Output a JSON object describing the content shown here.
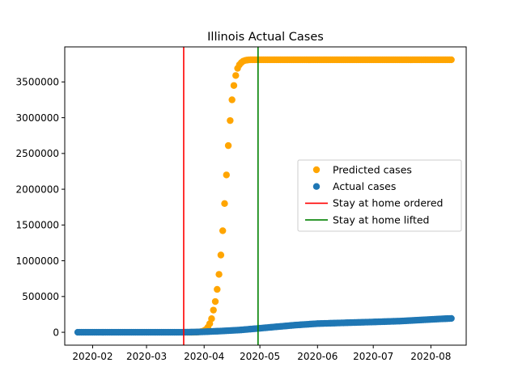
{
  "chart_data": {
    "type": "scatter",
    "title": "Illinois Actual Cases",
    "xlabel": "",
    "ylabel": "",
    "grid": false,
    "legend_position": "center-right",
    "xlim": [
      "2020-01-17",
      "2020-08-20"
    ],
    "ylim": [
      -180000,
      3990000
    ],
    "x_ticks": [
      "2020-02",
      "2020-03",
      "2020-04",
      "2020-05",
      "2020-06",
      "2020-07",
      "2020-08"
    ],
    "y_ticks": [
      0,
      500000,
      1000000,
      1500000,
      2000000,
      2500000,
      3000000,
      3500000
    ],
    "series": [
      {
        "name": "Predicted cases",
        "kind": "points",
        "color": "#ffa500",
        "x_start": "2020-03-21",
        "x_end": "2020-08-12",
        "points": [
          [
            "2020-03-21",
            0
          ],
          [
            "2020-03-22",
            0
          ],
          [
            "2020-03-23",
            0
          ],
          [
            "2020-03-24",
            0
          ],
          [
            "2020-03-25",
            0
          ],
          [
            "2020-03-26",
            500
          ],
          [
            "2020-03-27",
            1000
          ],
          [
            "2020-03-28",
            2000
          ],
          [
            "2020-03-29",
            4000
          ],
          [
            "2020-03-30",
            7000
          ],
          [
            "2020-03-31",
            12000
          ],
          [
            "2020-04-01",
            22000
          ],
          [
            "2020-04-02",
            40000
          ],
          [
            "2020-04-03",
            70000
          ],
          [
            "2020-04-04",
            120000
          ],
          [
            "2020-04-05",
            190000
          ],
          [
            "2020-04-06",
            310000
          ],
          [
            "2020-04-07",
            430000
          ],
          [
            "2020-04-08",
            600000
          ],
          [
            "2020-04-09",
            810000
          ],
          [
            "2020-04-10",
            1080000
          ],
          [
            "2020-04-11",
            1420000
          ],
          [
            "2020-04-12",
            1800000
          ],
          [
            "2020-04-13",
            2200000
          ],
          [
            "2020-04-14",
            2610000
          ],
          [
            "2020-04-15",
            2960000
          ],
          [
            "2020-04-16",
            3250000
          ],
          [
            "2020-04-17",
            3450000
          ],
          [
            "2020-04-18",
            3590000
          ],
          [
            "2020-04-19",
            3690000
          ],
          [
            "2020-04-20",
            3740000
          ],
          [
            "2020-04-21",
            3770000
          ],
          [
            "2020-04-22",
            3790000
          ],
          [
            "2020-04-23",
            3800000
          ],
          [
            "2020-04-24",
            3805000
          ],
          [
            "2020-04-25",
            3808000
          ]
        ],
        "plateau_value": 3810000
      },
      {
        "name": "Actual cases",
        "kind": "points",
        "color": "#1f77b4",
        "x_start": "2020-01-24",
        "x_end": "2020-08-12",
        "points": [
          [
            "2020-01-24",
            0
          ],
          [
            "2020-03-01",
            0
          ],
          [
            "2020-03-15",
            100
          ],
          [
            "2020-03-21",
            750
          ],
          [
            "2020-03-28",
            3500
          ],
          [
            "2020-04-01",
            7000
          ],
          [
            "2020-04-10",
            17000
          ],
          [
            "2020-04-20",
            31000
          ],
          [
            "2020-05-01",
            56000
          ],
          [
            "2020-05-10",
            77000
          ],
          [
            "2020-05-20",
            100000
          ],
          [
            "2020-06-01",
            121000
          ],
          [
            "2020-06-15",
            132000
          ],
          [
            "2020-07-01",
            144000
          ],
          [
            "2020-07-15",
            156000
          ],
          [
            "2020-08-01",
            180000
          ],
          [
            "2020-08-12",
            194000
          ]
        ]
      },
      {
        "name": "Stay at home ordered",
        "kind": "vline",
        "color": "#ff0000",
        "x": "2020-03-21"
      },
      {
        "name": "Stay at home lifted",
        "kind": "vline",
        "color": "#008000",
        "x": "2020-04-30"
      }
    ]
  }
}
